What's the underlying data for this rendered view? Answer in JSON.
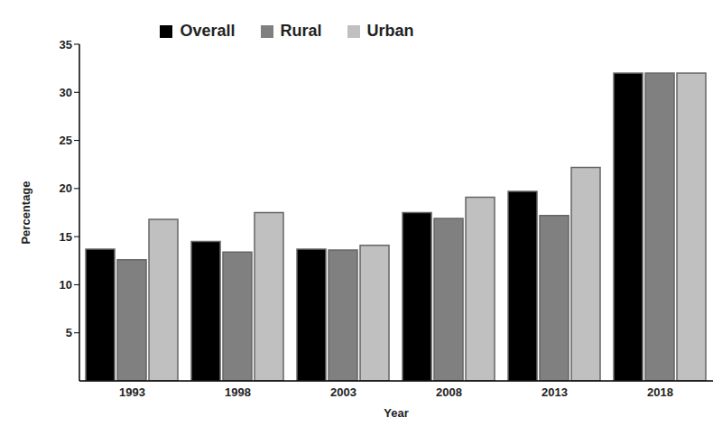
{
  "chart_data": {
    "type": "bar",
    "x_label": "Year",
    "y_label": "Percentage",
    "categories": [
      "1993",
      "1998",
      "2003",
      "2008",
      "2013",
      "2018"
    ],
    "series": [
      {
        "name": "Overall",
        "color": "#000000",
        "values": [
          13.7,
          14.5,
          13.7,
          17.5,
          19.7,
          32
        ]
      },
      {
        "name": "Rural",
        "color": "#808080",
        "values": [
          12.6,
          13.4,
          13.6,
          16.9,
          17.2,
          32
        ]
      },
      {
        "name": "Urban",
        "color": "#c0c0c0",
        "values": [
          16.8,
          17.5,
          14.1,
          19.1,
          22.2,
          32
        ]
      }
    ],
    "ylim": [
      0,
      35
    ],
    "yticks": [
      5,
      10,
      15,
      20,
      25,
      30,
      35
    ],
    "grid": false,
    "legend": "top"
  }
}
